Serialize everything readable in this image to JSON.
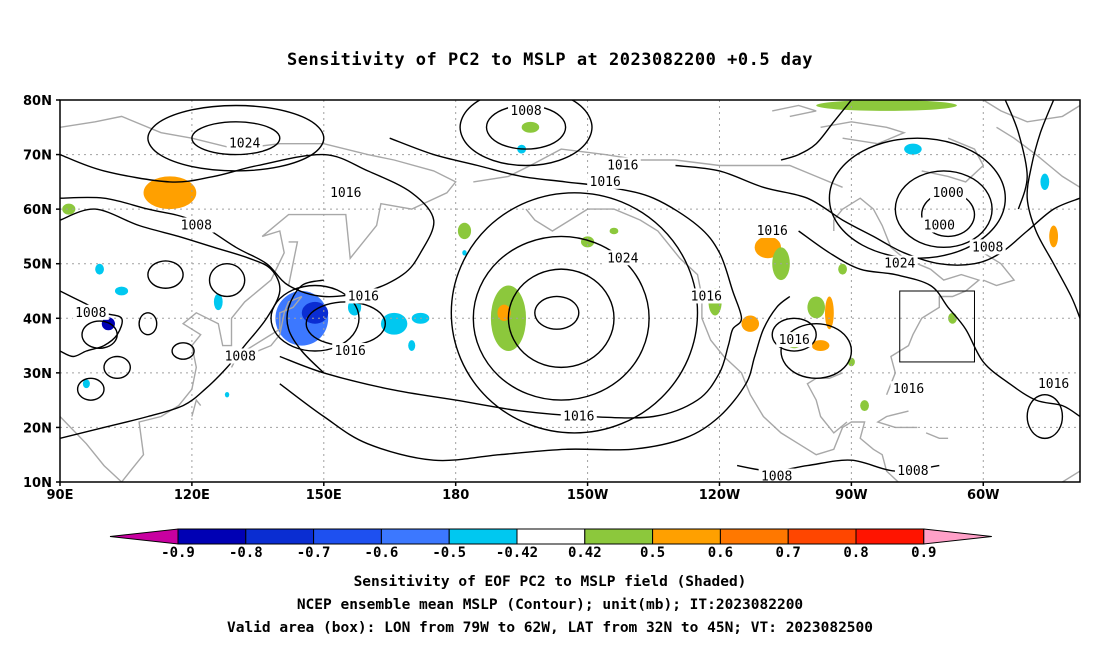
{
  "title": "Sensitivity of PC2 to MSLP at 2023082200 +0.5 day",
  "map": {
    "lat_labels": [
      "80N",
      "70N",
      "60N",
      "50N",
      "40N",
      "30N",
      "20N",
      "10N"
    ],
    "lon_labels": [
      "90E",
      "120E",
      "150E",
      "180",
      "150W",
      "120W",
      "90W",
      "60W"
    ],
    "contour_labels": [
      {
        "text": "1008",
        "lon": 196,
        "lat": 78
      },
      {
        "text": "1024",
        "lon": 132,
        "lat": 72
      },
      {
        "text": "1016",
        "lon": 218,
        "lat": 68
      },
      {
        "text": "1016",
        "lon": 214,
        "lat": 65
      },
      {
        "text": "1016",
        "lon": 155,
        "lat": 63
      },
      {
        "text": "1008",
        "lon": 121,
        "lat": 57
      },
      {
        "text": "1016",
        "lon": 252,
        "lat": 56
      },
      {
        "text": "1000",
        "lon": 292,
        "lat": 63
      },
      {
        "text": "1000",
        "lon": 290,
        "lat": 57
      },
      {
        "text": "1008",
        "lon": 301,
        "lat": 53
      },
      {
        "text": "1024",
        "lon": 218,
        "lat": 51
      },
      {
        "text": "1024",
        "lon": 281,
        "lat": 50
      },
      {
        "text": "1016",
        "lon": 159,
        "lat": 44
      },
      {
        "text": "1016",
        "lon": 237,
        "lat": 44
      },
      {
        "text": "1008",
        "lon": 97,
        "lat": 41
      },
      {
        "text": "1016",
        "lon": 156,
        "lat": 34
      },
      {
        "text": "1016",
        "lon": 257,
        "lat": 36
      },
      {
        "text": "1008",
        "lon": 131,
        "lat": 33
      },
      {
        "text": "1016",
        "lon": 283,
        "lat": 27
      },
      {
        "text": "1016",
        "lon": 316,
        "lat": 28
      },
      {
        "text": "1016",
        "lon": 208,
        "lat": 22
      },
      {
        "text": "1008",
        "lon": 253,
        "lat": 11
      },
      {
        "text": "1008",
        "lon": 284,
        "lat": 12
      }
    ],
    "valid_box": {
      "lon_min": 281,
      "lon_max": 298,
      "lat_min": 32,
      "lat_max": 45
    },
    "shading": [
      {
        "lon": 115,
        "lat": 63,
        "rlon": 6,
        "rlat": 3,
        "value": 0.6
      },
      {
        "lon": 92,
        "lat": 60,
        "rlon": 1.5,
        "rlat": 1,
        "value": 0.5
      },
      {
        "lon": 99,
        "lat": 49,
        "rlon": 1,
        "rlat": 1,
        "value": -0.5
      },
      {
        "lon": 104,
        "lat": 45,
        "rlon": 1.5,
        "rlat": 0.8,
        "value": -0.5
      },
      {
        "lon": 101,
        "lat": 39,
        "rlon": 1.5,
        "rlat": 1.2,
        "value": -0.9
      },
      {
        "lon": 96,
        "lat": 28,
        "rlon": 0.8,
        "rlat": 0.8,
        "value": -0.5
      },
      {
        "lon": 126,
        "lat": 43,
        "rlon": 1,
        "rlat": 1.5,
        "value": -0.5
      },
      {
        "lon": 145,
        "lat": 40,
        "rlon": 6,
        "rlat": 5,
        "value": -0.6
      },
      {
        "lon": 148,
        "lat": 41,
        "rlon": 3,
        "rlat": 2,
        "value": -0.8
      },
      {
        "lon": 157,
        "lat": 42,
        "rlon": 1.5,
        "rlat": 1.5,
        "value": -0.5
      },
      {
        "lon": 166,
        "lat": 39,
        "rlon": 3,
        "rlat": 2,
        "value": -0.5
      },
      {
        "lon": 172,
        "lat": 40,
        "rlon": 2,
        "rlat": 1,
        "value": -0.5
      },
      {
        "lon": 170,
        "lat": 35,
        "rlon": 0.8,
        "rlat": 1,
        "value": -0.5
      },
      {
        "lon": 128,
        "lat": 26,
        "rlon": 0.5,
        "rlat": 0.5,
        "value": -0.5
      },
      {
        "lon": 192,
        "lat": 40,
        "rlon": 4,
        "rlat": 6,
        "value": 0.5
      },
      {
        "lon": 191,
        "lat": 41,
        "rlon": 1.5,
        "rlat": 1.5,
        "value": 0.6
      },
      {
        "lon": 182,
        "lat": 56,
        "rlon": 1.5,
        "rlat": 1.5,
        "value": 0.5
      },
      {
        "lon": 197,
        "lat": 75,
        "rlon": 2,
        "rlat": 1,
        "value": 0.5
      },
      {
        "lon": 195,
        "lat": 71,
        "rlon": 1,
        "rlat": 0.8,
        "value": -0.5
      },
      {
        "lon": 210,
        "lat": 54,
        "rlon": 1.5,
        "rlat": 1,
        "value": 0.5
      },
      {
        "lon": 239,
        "lat": 43,
        "rlon": 1.5,
        "rlat": 2.5,
        "value": 0.5
      },
      {
        "lon": 251,
        "lat": 53,
        "rlon": 3,
        "rlat": 2,
        "value": 0.6
      },
      {
        "lon": 254,
        "lat": 50,
        "rlon": 2,
        "rlat": 3,
        "value": 0.5
      },
      {
        "lon": 247,
        "lat": 39,
        "rlon": 2,
        "rlat": 1.5,
        "value": 0.6
      },
      {
        "lon": 262,
        "lat": 42,
        "rlon": 2,
        "rlat": 2,
        "value": 0.5
      },
      {
        "lon": 265,
        "lat": 41,
        "rlon": 1,
        "rlat": 3,
        "value": 0.6
      },
      {
        "lon": 257,
        "lat": 36,
        "rlon": 2,
        "rlat": 1.5,
        "value": 0.5
      },
      {
        "lon": 263,
        "lat": 35,
        "rlon": 2,
        "rlat": 1,
        "value": 0.6
      },
      {
        "lon": 268,
        "lat": 49,
        "rlon": 1,
        "rlat": 1,
        "value": 0.5
      },
      {
        "lon": 278,
        "lat": 79,
        "rlon": 16,
        "rlat": 1,
        "value": 0.5
      },
      {
        "lon": 284,
        "lat": 71,
        "rlon": 2,
        "rlat": 1,
        "value": -0.5
      },
      {
        "lon": 293,
        "lat": 40,
        "rlon": 1,
        "rlat": 1,
        "value": 0.5
      },
      {
        "lon": 270,
        "lat": 32,
        "rlon": 0.8,
        "rlat": 0.8,
        "value": 0.5
      },
      {
        "lon": 273,
        "lat": 24,
        "rlon": 1,
        "rlat": 1,
        "value": 0.5
      },
      {
        "lon": 314,
        "lat": 65,
        "rlon": 1,
        "rlat": 1.5,
        "value": -0.5
      },
      {
        "lon": 316,
        "lat": 55,
        "rlon": 1,
        "rlat": 2,
        "value": 0.6
      },
      {
        "lon": 216,
        "lat": 56,
        "rlon": 1,
        "rlat": 0.6,
        "value": 0.5
      },
      {
        "lon": 182,
        "lat": 52,
        "rlon": 0.5,
        "rlat": 0.5,
        "value": -0.5
      }
    ]
  },
  "colorbar": {
    "labels": [
      "-0.9",
      "-0.8",
      "-0.7",
      "-0.6",
      "-0.5",
      "-0.42",
      "0.42",
      "0.5",
      "0.6",
      "0.7",
      "0.8",
      "0.9"
    ],
    "colors": [
      "#0000b4",
      "#0a2dd2",
      "#1e50f0",
      "#3c78ff",
      "#00c8f0",
      "#ffffff",
      "#8cc83c",
      "#ffa000",
      "#ff7800",
      "#ff4600",
      "#ff1400"
    ],
    "low_end_color": "#c800a0",
    "high_end_color": "#ffa0c8"
  },
  "footer": {
    "line1": "Sensitivity of EOF PC2 to MSLP field (Shaded)",
    "line2": "NCEP ensemble mean MSLP (Contour); unit(mb); IT:2023082200",
    "line3": "Valid area (box): LON from 79W to 62W, LAT from 32N to 45N; VT: 2023082500"
  }
}
